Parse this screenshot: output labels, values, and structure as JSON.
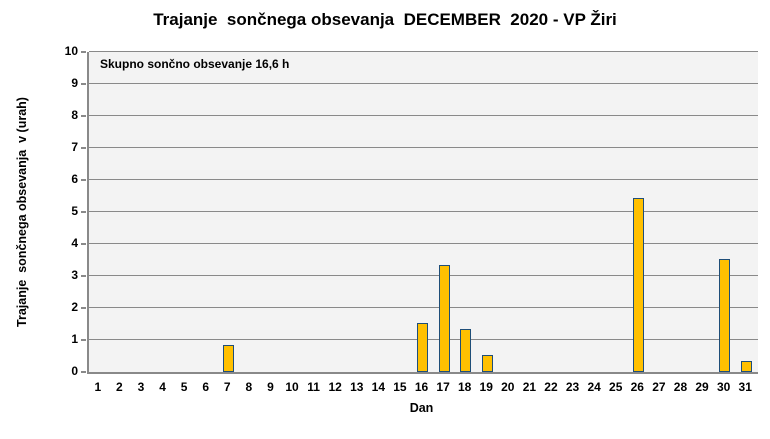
{
  "chart_data": {
    "type": "bar",
    "title": "Trajanje  sončnega obsevanja  DECEMBER  2020 - VP Žiri",
    "annotation": "Skupno sončno obsevanje 16,6 h",
    "xlabel": "Dan",
    "ylabel": "Trajanje  sončnega obsevanja  v (urah)",
    "categories": [
      1,
      2,
      3,
      4,
      5,
      6,
      7,
      8,
      9,
      10,
      11,
      12,
      13,
      14,
      15,
      16,
      17,
      18,
      19,
      20,
      21,
      22,
      23,
      24,
      25,
      26,
      27,
      28,
      29,
      30,
      31
    ],
    "values": [
      0,
      0,
      0,
      0,
      0,
      0,
      0.8,
      0,
      0,
      0,
      0,
      0,
      0,
      0,
      0,
      1.5,
      3.3,
      1.3,
      0.5,
      0,
      0,
      0,
      0,
      0,
      0,
      5.4,
      0,
      0,
      0,
      3.5,
      0.3
    ],
    "total_hours": "16,6",
    "ylim": [
      0,
      10
    ],
    "yticks": [
      0,
      1,
      2,
      3,
      4,
      5,
      6,
      7,
      8,
      9,
      10
    ],
    "grid": true,
    "legend": false,
    "colors": {
      "bar_fill": "#FFC000",
      "bar_border": "#1F4E79",
      "gridline": "#898989",
      "axis": "#898989",
      "plot_bg": "#F3F3F3",
      "page_bg": "#FFFFFF",
      "text": "#000000"
    }
  }
}
